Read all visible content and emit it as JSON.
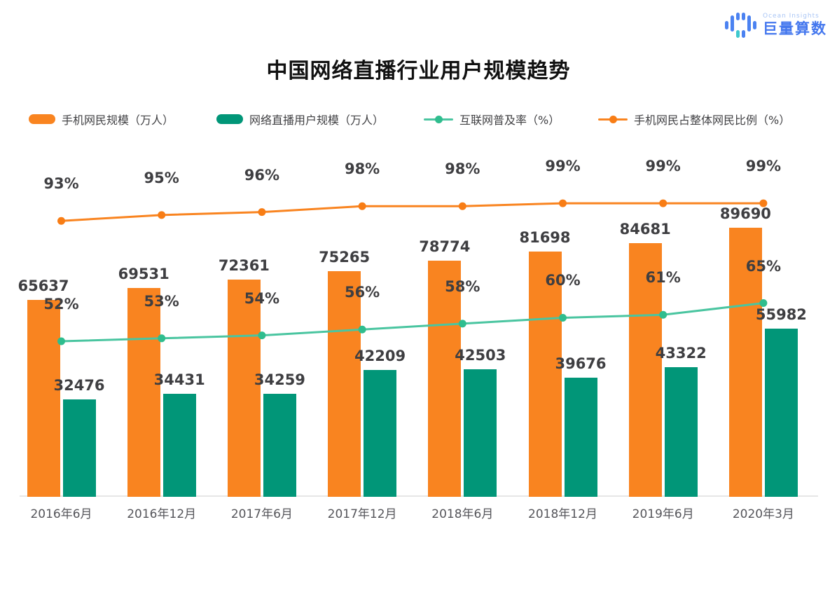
{
  "logo": {
    "brand_en": "Ocean Insights",
    "brand_cn": "巨量算数",
    "icon": "bar-wave-logo-icon",
    "colors": {
      "blue": "#4B82F1",
      "light_blue": "#A9C5F5",
      "teal_accent": "#3EC8CE"
    }
  },
  "title": "中国网络直播行业用户规模趋势",
  "legend": [
    {
      "label": "手机网民规模（万人）",
      "marker": "bar",
      "color": "#F98420"
    },
    {
      "label": "网络直播用户规模（万人）",
      "marker": "bar",
      "color": "#019678"
    },
    {
      "label": "互联网普及率（%）",
      "marker": "line",
      "color": "#4AC5A0",
      "dot_color": "#2FBD8E"
    },
    {
      "label": "手机网民占整体网民比例（%）",
      "marker": "line",
      "color": "#F98420",
      "dot_color": "#F87D15"
    }
  ],
  "chart_data": {
    "type": "bar",
    "subtype": "combo-bar-line",
    "title": "中国网络直播行业用户规模趋势",
    "categories": [
      "2016年6月",
      "2016年12月",
      "2017年6月",
      "2017年12月",
      "2018年6月",
      "2018年12月",
      "2019年6月",
      "2020年3月"
    ],
    "series": [
      {
        "name": "手机网民规模（万人）",
        "kind": "bar",
        "color": "#F98420",
        "values": [
          65637,
          69531,
          72361,
          75265,
          78774,
          81698,
          84681,
          89690
        ]
      },
      {
        "name": "网络直播用户规模（万人）",
        "kind": "bar",
        "color": "#019678",
        "values": [
          32476,
          34431,
          34259,
          42209,
          42503,
          39676,
          43322,
          55982
        ]
      },
      {
        "name": "互联网普及率（%）",
        "kind": "line",
        "color": "#4AC5A0",
        "dot_color": "#2FBD8E",
        "unit": "%",
        "values": [
          52,
          53,
          54,
          56,
          58,
          60,
          61,
          65
        ]
      },
      {
        "name": "手机网民占整体网民比例（%）",
        "kind": "line",
        "color": "#F98420",
        "dot_color": "#F87D15",
        "unit": "%",
        "values": [
          93,
          95,
          96,
          98,
          98,
          99,
          99,
          99
        ]
      }
    ],
    "xlabel": "",
    "ylabel": "",
    "grid": false,
    "axes_visible": false,
    "data_labels_shown": true,
    "legend_position": "top",
    "label_color": "#3E3E41",
    "axis_text_color": "#55555A"
  }
}
